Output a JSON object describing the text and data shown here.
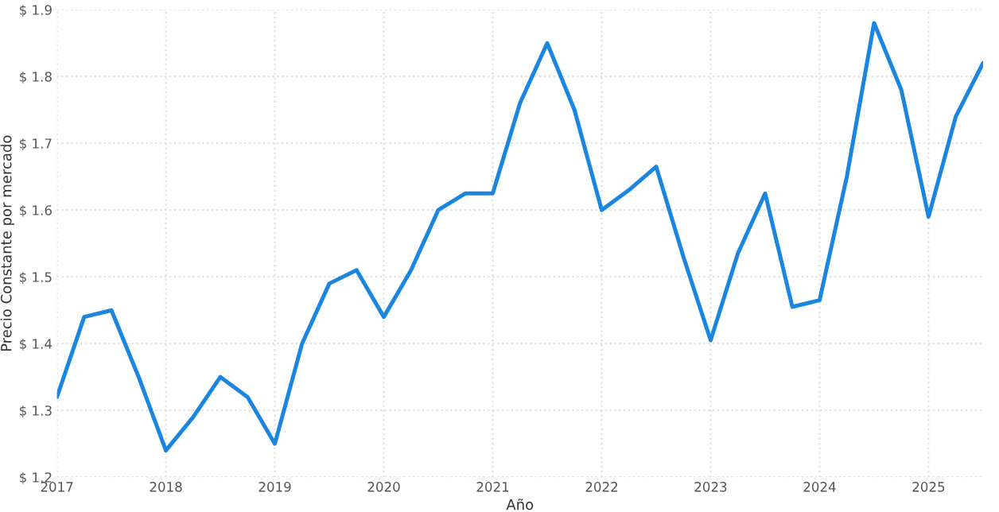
{
  "chart_data": {
    "type": "line",
    "xlabel": "Año",
    "ylabel": "Precio Constante por mercado",
    "x": [
      2017,
      2017.25,
      2017.5,
      2017.75,
      2018,
      2018.25,
      2018.5,
      2018.75,
      2019,
      2019.25,
      2019.5,
      2019.75,
      2020,
      2020.25,
      2020.5,
      2020.75,
      2021,
      2021.25,
      2021.5,
      2021.75,
      2022,
      2022.25,
      2022.5,
      2022.75,
      2023,
      2023.25,
      2023.5,
      2023.75,
      2024,
      2024.25,
      2024.5,
      2024.75,
      2025,
      2025.25,
      2025.5
    ],
    "series": [
      {
        "color": "#1a86e0",
        "values": [
          1.32,
          1.44,
          1.45,
          1.35,
          1.24,
          1.29,
          1.35,
          1.32,
          1.25,
          1.4,
          1.49,
          1.51,
          1.44,
          1.51,
          1.6,
          1.625,
          1.625,
          1.76,
          1.85,
          1.75,
          1.6,
          1.63,
          1.665,
          1.53,
          1.405,
          1.535,
          1.625,
          1.455,
          1.465,
          1.65,
          1.88,
          1.78,
          1.59,
          1.74,
          1.82
        ]
      }
    ],
    "xlim": [
      2017,
      2025.5
    ],
    "xticks": [
      2017,
      2018,
      2019,
      2020,
      2021,
      2022,
      2023,
      2024,
      2025
    ],
    "ylim": [
      1.2,
      1.9
    ],
    "yticks": [
      {
        "value": 1.2,
        "label": "$ 1.2"
      },
      {
        "value": 1.3,
        "label": "$ 1.3"
      },
      {
        "value": 1.4,
        "label": "$ 1.4"
      },
      {
        "value": 1.5,
        "label": "$ 1.5"
      },
      {
        "value": 1.6,
        "label": "$ 1.6"
      },
      {
        "value": 1.7,
        "label": "$ 1.7"
      },
      {
        "value": 1.8,
        "label": "$ 1.8"
      },
      {
        "value": 1.9,
        "label": "$ 1.9"
      }
    ],
    "grid": true,
    "legend": false,
    "marker": "none",
    "line_style": "solid"
  }
}
